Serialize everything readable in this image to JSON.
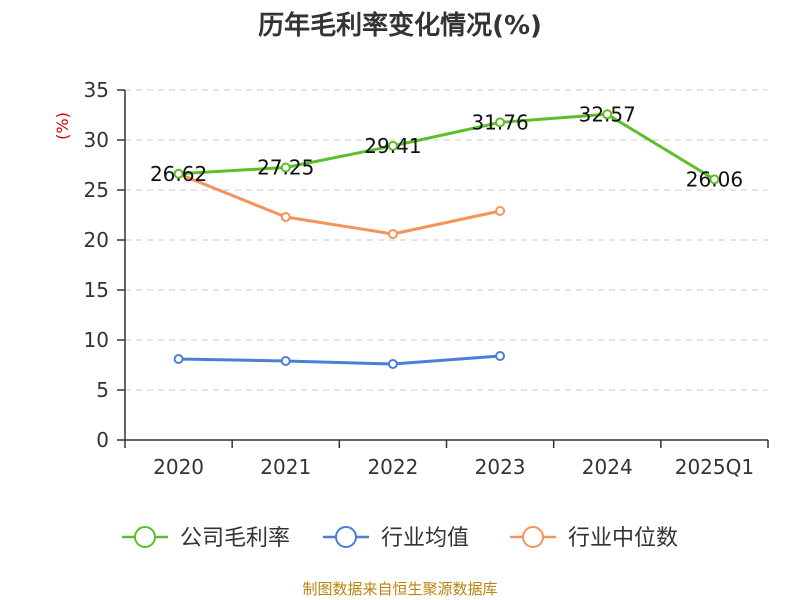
{
  "chart_data": {
    "type": "line",
    "title": "历年毛利率变化情况(%)",
    "ylabel": "(%)",
    "xlabel": "",
    "categories": [
      "2020",
      "2021",
      "2022",
      "2023",
      "2024",
      "2025Q1"
    ],
    "ylim": [
      0,
      35
    ],
    "yticks": [
      0,
      5,
      10,
      15,
      20,
      25,
      30,
      35
    ],
    "grid": true,
    "legend_position": "bottom",
    "series": [
      {
        "name": "公司毛利率",
        "color": "#5cbf2a",
        "values": [
          26.62,
          27.25,
          29.41,
          31.76,
          32.57,
          26.06
        ],
        "labels": [
          "26.62",
          "27.25",
          "29.41",
          "31.76",
          "32.57",
          "26.06"
        ]
      },
      {
        "name": "行业均值",
        "color": "#4a7fd4",
        "values": [
          8.1,
          7.9,
          7.6,
          8.4,
          null,
          null
        ]
      },
      {
        "name": "行业中位数",
        "color": "#f5935a",
        "values": [
          26.62,
          22.3,
          20.6,
          22.9,
          null,
          null
        ]
      }
    ]
  },
  "footer": {
    "source": "制图数据来自恒生聚源数据库"
  }
}
